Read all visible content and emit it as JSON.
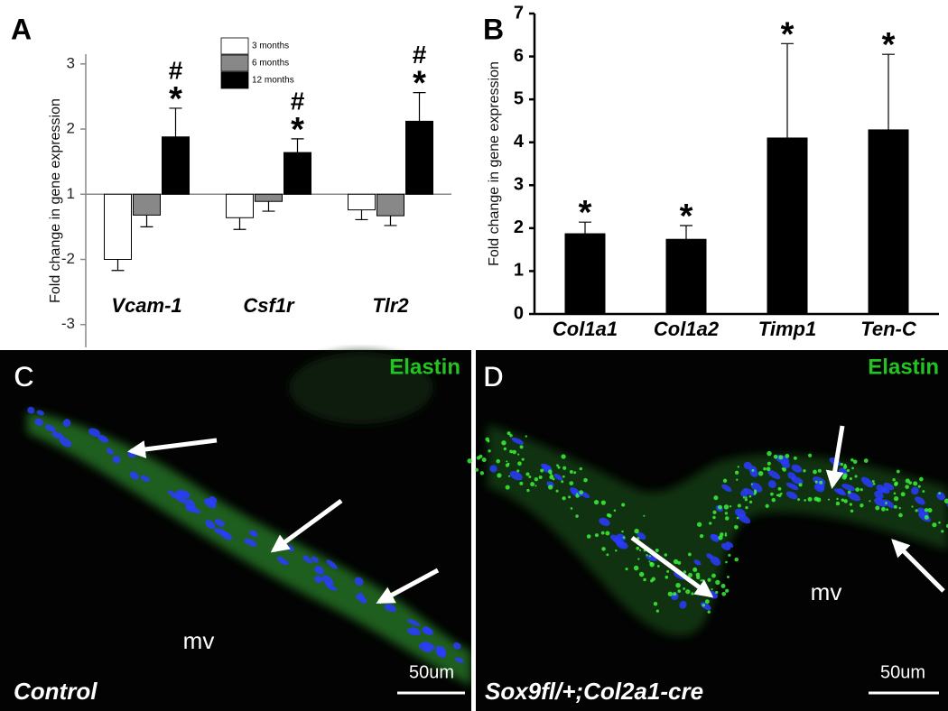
{
  "chart_data": [
    {
      "type": "bar",
      "panel_label": "A",
      "scale": "fold-change",
      "ylabel": "Fold change in gene expression",
      "categories": [
        "Vcam-1",
        "Csf1r",
        "Tlr2"
      ],
      "series": [
        {
          "name": "3 months",
          "color": "#ffffff",
          "values": [
            -2.0,
            -1.36,
            -1.24
          ],
          "errors": [
            0.17,
            0.18,
            0.15
          ]
        },
        {
          "name": "6 months",
          "color": "#888888",
          "values": [
            -1.32,
            -1.11,
            -1.33
          ],
          "errors": [
            0.18,
            0.15,
            0.15
          ]
        },
        {
          "name": "12 months",
          "color": "#000000",
          "values": [
            1.88,
            1.64,
            2.12
          ],
          "errors": [
            0.44,
            0.21,
            0.44
          ],
          "markers": [
            [
              "#",
              "*"
            ],
            [
              "#",
              "*"
            ],
            [
              "#",
              "*"
            ]
          ]
        }
      ],
      "ylim": [
        -3.35,
        3.15
      ],
      "yticks": [
        3,
        2,
        1,
        -2,
        -3
      ],
      "legend": "upper center"
    },
    {
      "type": "bar",
      "panel_label": "B",
      "scale": "linear",
      "ylabel": "Fold change in gene expression",
      "categories": [
        "Col1a1",
        "Col1a2",
        "Timp1",
        "Ten-C"
      ],
      "values": [
        1.87,
        1.74,
        4.1,
        4.29
      ],
      "errors": [
        0.27,
        0.32,
        2.2,
        1.76
      ],
      "markers": [
        "*",
        "*",
        "*",
        "*"
      ],
      "color": "#000000",
      "ylim": [
        0,
        7
      ],
      "yticks": [
        0,
        1,
        2,
        3,
        4,
        5,
        6,
        7
      ]
    }
  ],
  "panels": [
    {
      "label": "C",
      "stain": "Elastin",
      "region": "mv",
      "condition": "Control",
      "scale_bar": "50um"
    },
    {
      "label": "D",
      "stain": "Elastin",
      "region": "mv",
      "condition": "Sox9fl/+;Col2a1-cre",
      "scale_bar": "50um"
    }
  ]
}
